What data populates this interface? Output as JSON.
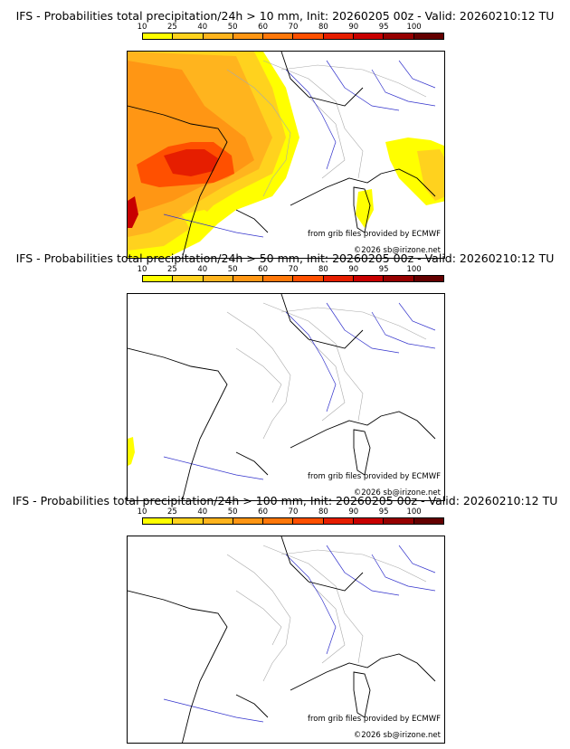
{
  "colors": {
    "scale": [
      "#ffff00",
      "#ffd21e",
      "#ffb41e",
      "#ff9614",
      "#ff780a",
      "#ff5000",
      "#e61e00",
      "#c80000",
      "#960000",
      "#640000"
    ],
    "coast": "#000000",
    "rivers": "#3333cc",
    "borders": "#aaaaaa"
  },
  "scale": {
    "labels": [
      "10",
      "25",
      "40",
      "50",
      "60",
      "70",
      "80",
      "90",
      "95",
      "100"
    ]
  },
  "panels": [
    {
      "title": "IFS - Probabilities total precipitation/24h > 10 mm, Init: 20260205 00z - Valid: 20260210:12 TU",
      "source_credit": "from grib files provided by ECMWF",
      "copyright": "©2026 sb@irizone.net"
    },
    {
      "title": "IFS - Probabilities total precipitation/24h > 50 mm, Init: 20260205 00z - Valid: 20260210:12 TU",
      "source_credit": "from grib files provided by ECMWF",
      "copyright": "©2026 sb@irizone.net"
    },
    {
      "title": "IFS - Probabilities total precipitation/24h > 100 mm, Init: 20260205 00z - Valid: 20260210:12 TU",
      "source_credit": "from grib files provided by ECMWF",
      "copyright": "©2026 sb@irizone.net"
    }
  ]
}
